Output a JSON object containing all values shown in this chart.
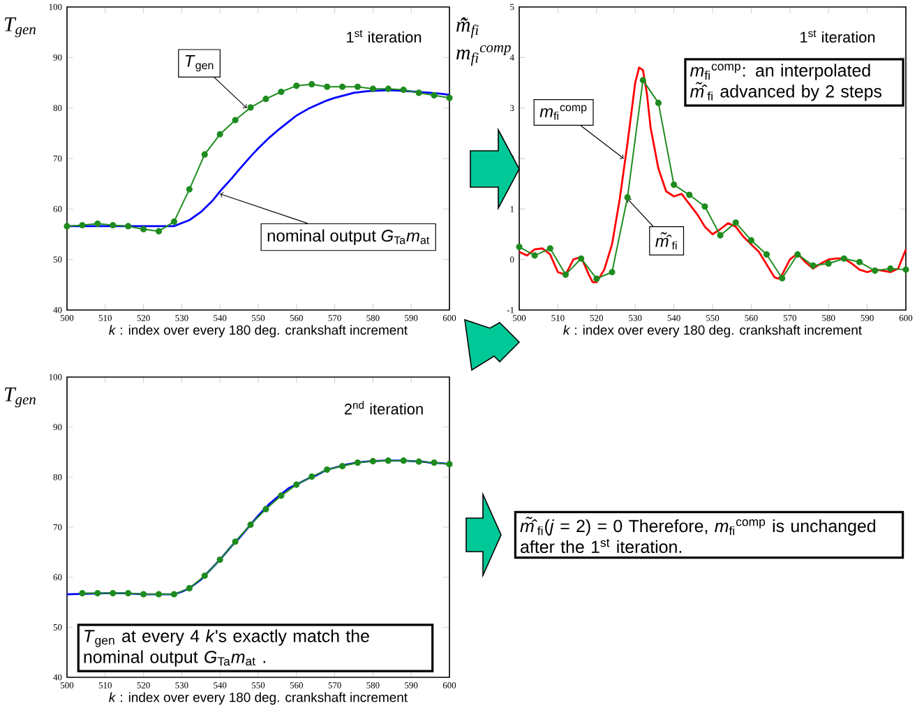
{
  "chart_data": [
    {
      "type": "line",
      "xlabel": "*k* : index over every 180 deg. crankshaft increment",
      "ylabel": "*T*$_{gen}$",
      "xlim": [
        500,
        600
      ],
      "ylim": [
        40,
        100
      ],
      "xticks": [
        500,
        510,
        520,
        530,
        540,
        550,
        560,
        570,
        580,
        590,
        600
      ],
      "yticks": [
        40,
        50,
        60,
        70,
        80,
        90,
        100
      ],
      "series": [
        {
          "color": "#0000ff",
          "marker": "none",
          "x": [
            500,
            505,
            510,
            515,
            520,
            525,
            528,
            530,
            532,
            535,
            538,
            540,
            543,
            545,
            548,
            550,
            553,
            555,
            558,
            560,
            563,
            565,
            568,
            570,
            573,
            575,
            578,
            580,
            583,
            585,
            588,
            590,
            593,
            595,
            598,
            600
          ],
          "values": [
            56.6,
            56.6,
            56.6,
            56.6,
            56.6,
            56.6,
            56.6,
            57.2,
            57.8,
            59.4,
            61.6,
            63.5,
            66.0,
            67.8,
            70.4,
            72.0,
            74.2,
            75.5,
            77.3,
            78.5,
            79.8,
            80.5,
            81.5,
            82.0,
            82.6,
            83.0,
            83.3,
            83.4,
            83.5,
            83.5,
            83.4,
            83.3,
            83.1,
            83.0,
            82.8,
            82.6
          ]
        },
        {
          "color": "#1e8c1e",
          "marker": "circle",
          "x": [
            500,
            504,
            508,
            512,
            516,
            520,
            524,
            528,
            532,
            536,
            540,
            544,
            548,
            552,
            556,
            560,
            564,
            568,
            572,
            576,
            580,
            584,
            588,
            592,
            596,
            600
          ],
          "values": [
            56.6,
            56.8,
            57.1,
            56.8,
            56.6,
            56.0,
            55.6,
            57.5,
            63.9,
            70.8,
            74.8,
            77.6,
            80.1,
            81.8,
            83.2,
            84.4,
            84.7,
            84.2,
            84.2,
            84.2,
            83.8,
            83.8,
            83.6,
            83.0,
            82.5,
            82.0
          ]
        }
      ],
      "annotations": [
        "1$^{st}$ iteration",
        {
          "text": "*T*$_{gen}$",
          "x": 547,
          "y": 80
        },
        {
          "text": "nominal output *G*$_{Ta}$*m*$_{at}$",
          "x": 540,
          "y": 63
        }
      ]
    },
    {
      "type": "line",
      "xlabel": "*k* : index over every 180 deg. crankshaft increment",
      "ylabel": "*m̃̂*$_{fi}$ *m*$_{fi}$$^{comp}$",
      "xlim": [
        500,
        600
      ],
      "ylim": [
        -1,
        5
      ],
      "xticks": [
        500,
        510,
        520,
        530,
        540,
        550,
        560,
        570,
        580,
        590,
        600
      ],
      "yticks": [
        -1,
        0,
        1,
        2,
        3,
        4,
        5
      ],
      "series": [
        {
          "color": "#ff0000",
          "marker": "none",
          "x": [
            500,
            502,
            504,
            506,
            508,
            510,
            512,
            514,
            516,
            518,
            519,
            520,
            522,
            524,
            526,
            528,
            530,
            531,
            532,
            533,
            534,
            536,
            538,
            540,
            542,
            544,
            546,
            548,
            550,
            552,
            554,
            556,
            558,
            560,
            562,
            564,
            566,
            567,
            568,
            570,
            572,
            574,
            576,
            578,
            580,
            582,
            584,
            586,
            588,
            590,
            592,
            594,
            596,
            598,
            600
          ],
          "values": [
            0.15,
            0.08,
            0.2,
            0.22,
            0.1,
            -0.25,
            -0.3,
            0.0,
            0.05,
            -0.3,
            -0.45,
            -0.45,
            -0.2,
            0.3,
            1.2,
            2.3,
            3.5,
            3.8,
            3.75,
            3.3,
            2.6,
            1.8,
            1.35,
            1.25,
            1.3,
            1.1,
            0.9,
            0.65,
            0.5,
            0.6,
            0.72,
            0.65,
            0.45,
            0.3,
            0.15,
            -0.1,
            -0.35,
            -0.38,
            -0.3,
            0.0,
            0.12,
            -0.05,
            -0.18,
            -0.08,
            0.0,
            0.02,
            0.02,
            -0.08,
            -0.2,
            -0.25,
            -0.2,
            -0.22,
            -0.25,
            -0.18,
            0.2
          ]
        },
        {
          "color": "#1e8c1e",
          "marker": "circle",
          "x": [
            500,
            504,
            508,
            512,
            516,
            520,
            524,
            528,
            532,
            536,
            540,
            544,
            548,
            552,
            556,
            560,
            564,
            568,
            572,
            576,
            580,
            584,
            588,
            592,
            596,
            600
          ],
          "values": [
            0.25,
            0.08,
            0.22,
            -0.3,
            0.02,
            -0.38,
            -0.25,
            1.23,
            3.55,
            3.1,
            1.48,
            1.28,
            1.05,
            0.48,
            0.73,
            0.38,
            0.1,
            -0.37,
            0.1,
            -0.12,
            -0.08,
            0.02,
            -0.05,
            -0.22,
            -0.18,
            -0.2
          ]
        }
      ],
      "annotations": [
        "1$^{st}$ iteration",
        {
          "text": "*m*$_{fi}$$^{comp}$",
          "x": 527,
          "y": 2.0
        },
        {
          "text": "*m̃̂*$_{fi}$",
          "x": 528,
          "y": 1.2
        },
        "*m*$_{fi}$$^{comp}$: an interpolated *m̃̂*$_{fi}$ advanced by 2 steps"
      ]
    },
    {
      "type": "line",
      "xlabel": "*k* : index over every 180 deg. crankshaft increment",
      "ylabel": "*T*$_{gen}$",
      "xlim": [
        500,
        600
      ],
      "ylim": [
        40,
        100
      ],
      "xticks": [
        500,
        510,
        520,
        530,
        540,
        550,
        560,
        570,
        580,
        590,
        600
      ],
      "yticks": [
        40,
        50,
        60,
        70,
        80,
        90,
        100
      ],
      "series": [
        {
          "color": "#0000ff",
          "marker": "none",
          "x": [
            500,
            505,
            510,
            515,
            520,
            525,
            528,
            530,
            532,
            535,
            538,
            540,
            543,
            545,
            548,
            550,
            553,
            555,
            558,
            560,
            563,
            565,
            568,
            570,
            573,
            575,
            578,
            580,
            583,
            585,
            588,
            590,
            593,
            595,
            598,
            600
          ],
          "values": [
            56.6,
            56.7,
            56.8,
            56.8,
            56.6,
            56.6,
            56.6,
            57.1,
            57.8,
            59.5,
            61.9,
            63.5,
            66.2,
            67.8,
            70.5,
            72.3,
            74.7,
            76.0,
            77.8,
            78.5,
            79.7,
            80.3,
            81.5,
            81.9,
            82.5,
            82.8,
            83.1,
            83.2,
            83.3,
            83.3,
            83.3,
            83.2,
            83.1,
            82.9,
            82.8,
            82.6
          ]
        },
        {
          "color": "#1e8c1e",
          "marker": "circle",
          "x": [
            504,
            508,
            512,
            516,
            520,
            524,
            528,
            532,
            536,
            540,
            544,
            548,
            552,
            556,
            560,
            564,
            568,
            572,
            576,
            580,
            584,
            588,
            592,
            596,
            600
          ],
          "values": [
            56.8,
            56.8,
            56.8,
            56.8,
            56.6,
            56.6,
            56.6,
            57.8,
            60.3,
            63.5,
            67.1,
            70.5,
            73.6,
            76.3,
            78.5,
            80.1,
            81.5,
            82.2,
            82.9,
            83.2,
            83.3,
            83.3,
            83.1,
            82.9,
            82.6
          ]
        }
      ],
      "annotations": [
        "2$^{nd}$ iteration",
        "*T*$_{gen}$ at every 4 *k*'s exactly match the nominal output *G*$_{Ta}$*m*$_{at}$ .",
        "*m̃̂*$_{fi}$(*j* = 2) = 0  Therefore, *m*$_{fi}$$^{comp}$ is unchanged after the 1$^{st}$ iteration."
      ]
    }
  ]
}
